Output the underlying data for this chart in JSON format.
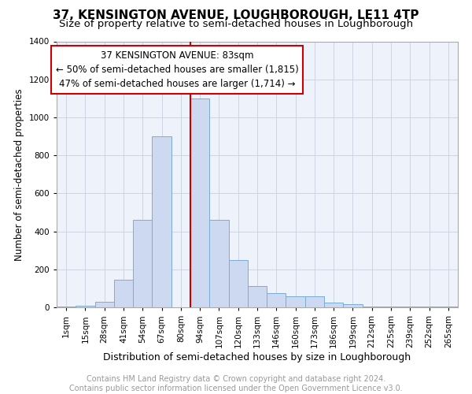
{
  "title": "37, KENSINGTON AVENUE, LOUGHBOROUGH, LE11 4TP",
  "subtitle": "Size of property relative to semi-detached houses in Loughborough",
  "xlabel": "Distribution of semi-detached houses by size in Loughborough",
  "ylabel": "Number of semi-detached properties",
  "footer_line1": "Contains HM Land Registry data © Crown copyright and database right 2024.",
  "footer_line2": "Contains public sector information licensed under the Open Government Licence v3.0.",
  "bar_labels": [
    "1sqm",
    "15sqm",
    "28sqm",
    "41sqm",
    "54sqm",
    "67sqm",
    "80sqm",
    "94sqm",
    "107sqm",
    "120sqm",
    "133sqm",
    "146sqm",
    "160sqm",
    "173sqm",
    "186sqm",
    "199sqm",
    "212sqm",
    "225sqm",
    "239sqm",
    "252sqm",
    "265sqm"
  ],
  "bar_values": [
    5,
    10,
    30,
    145,
    460,
    900,
    0,
    1100,
    460,
    250,
    110,
    75,
    60,
    60,
    25,
    15,
    5,
    5,
    5,
    5,
    5
  ],
  "bar_color": "#ccd9f0",
  "bar_edge_color": "#7aacd6",
  "ylim": [
    0,
    1400
  ],
  "yticks": [
    0,
    200,
    400,
    600,
    800,
    1000,
    1200,
    1400
  ],
  "property_label": "37 KENSINGTON AVENUE: 83sqm",
  "annotation_line1": "← 50% of semi-detached houses are smaller (1,815)",
  "annotation_line2": "47% of semi-detached houses are larger (1,714) →",
  "redline_bar_index": 6,
  "box_edge_color": "#cc0000",
  "bg_color": "#eef2fb",
  "grid_color": "#c8d0e0",
  "title_fontsize": 11,
  "subtitle_fontsize": 9.5,
  "xlabel_fontsize": 9,
  "ylabel_fontsize": 8.5,
  "tick_fontsize": 7.5,
  "annotation_fontsize": 8.5,
  "footer_fontsize": 7
}
